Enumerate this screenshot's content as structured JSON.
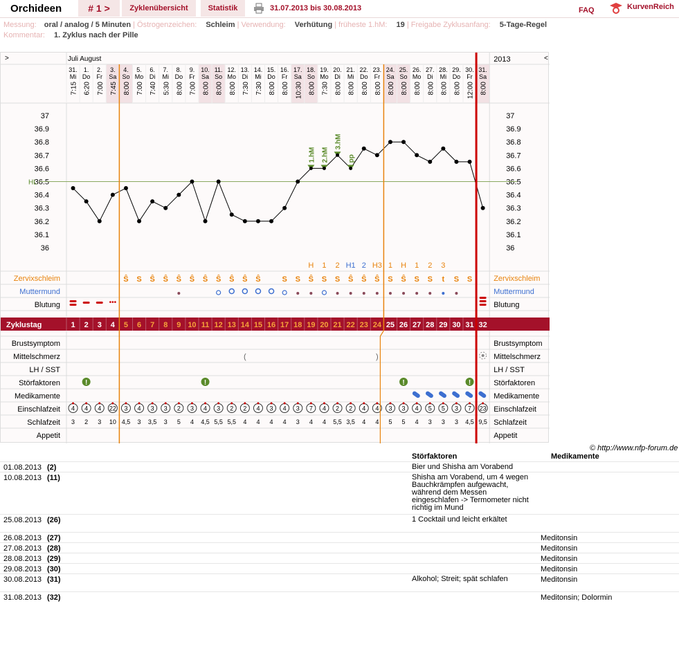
{
  "header": {
    "title": "Orchideen",
    "cycle_nav": "# 1 >",
    "tabs": [
      "Zyklenübersicht",
      "Statistik"
    ],
    "date_range": "31.07.2013 bis 30.08.2013",
    "faq": "FAQ",
    "brand": "KurvenReich"
  },
  "info": {
    "line1": [
      {
        "label": "Messung:",
        "value": "oral / analog / 5 Minuten"
      },
      {
        "label": "Östrogenzeichen:",
        "value": "Schleim"
      },
      {
        "label": "Verwendung:",
        "value": "Verhütung"
      },
      {
        "label": "früheste 1.hM:",
        "value": "19"
      },
      {
        "label": "Freigabe Zyklusanfang:",
        "value": "5-Tage-Regel"
      }
    ],
    "comment_label": "Kommentar:",
    "comment": "1. Zyklus nach der Pille"
  },
  "chart": {
    "nav_left": ">",
    "nav_right": "<",
    "months": "Juli August",
    "year": "2013",
    "days": [
      {
        "d": "31.",
        "w": "Mi",
        "t": "7:15"
      },
      {
        "d": "1.",
        "w": "Do",
        "t": "6:20"
      },
      {
        "d": "2.",
        "w": "Fr",
        "t": "7:00"
      },
      {
        "d": "3.",
        "w": "Sa",
        "t": "7:45"
      },
      {
        "d": "4.",
        "w": "So",
        "t": "8:00"
      },
      {
        "d": "5.",
        "w": "Mo",
        "t": "7:00"
      },
      {
        "d": "6.",
        "w": "Di",
        "t": "7:40"
      },
      {
        "d": "7.",
        "w": "Mi",
        "t": "5:30"
      },
      {
        "d": "8.",
        "w": "Do",
        "t": "8:00"
      },
      {
        "d": "9.",
        "w": "Fr",
        "t": "7:00"
      },
      {
        "d": "10.",
        "w": "Sa",
        "t": "8:00"
      },
      {
        "d": "11.",
        "w": "So",
        "t": "8:00"
      },
      {
        "d": "12.",
        "w": "Mo",
        "t": "8:00"
      },
      {
        "d": "13.",
        "w": "Di",
        "t": "7:30"
      },
      {
        "d": "14.",
        "w": "Mi",
        "t": "7:30"
      },
      {
        "d": "15.",
        "w": "Do",
        "t": "8:00"
      },
      {
        "d": "16.",
        "w": "Fr",
        "t": "8:00"
      },
      {
        "d": "17.",
        "w": "Sa",
        "t": "10:30"
      },
      {
        "d": "18.",
        "w": "So",
        "t": "8:00"
      },
      {
        "d": "19.",
        "w": "Mo",
        "t": "7:30"
      },
      {
        "d": "20.",
        "w": "Di",
        "t": "8:00"
      },
      {
        "d": "21.",
        "w": "Mi",
        "t": "8:00"
      },
      {
        "d": "22.",
        "w": "Do",
        "t": "8:00"
      },
      {
        "d": "23.",
        "w": "Fr",
        "t": "8:00"
      },
      {
        "d": "24.",
        "w": "Sa",
        "t": "8:00"
      },
      {
        "d": "25.",
        "w": "So",
        "t": "8:00"
      },
      {
        "d": "26.",
        "w": "Mo",
        "t": "8:00"
      },
      {
        "d": "27.",
        "w": "Di",
        "t": "8:00"
      },
      {
        "d": "28.",
        "w": "Mi",
        "t": "8:00"
      },
      {
        "d": "29.",
        "w": "Do",
        "t": "8:00"
      },
      {
        "d": "30.",
        "w": "Fr",
        "t": "12:00"
      },
      {
        "d": "31.",
        "w": "Sa",
        "t": "8:00"
      }
    ],
    "weekend": [
      3,
      4,
      10,
      11,
      17,
      18,
      24,
      25,
      31
    ],
    "ticks": [
      "37",
      "36.9",
      "36.8",
      "36.7",
      "36.6",
      "36.5",
      "36.4",
      "36.3",
      "36.2",
      "36.1",
      "36"
    ],
    "hl_label": "HL",
    "temps": [
      36.45,
      36.35,
      36.2,
      36.4,
      36.45,
      36.2,
      36.35,
      36.3,
      36.4,
      36.5,
      36.2,
      36.5,
      36.25,
      36.2,
      36.2,
      36.2,
      36.3,
      36.5,
      36.6,
      36.6,
      36.7,
      36.6,
      36.75,
      36.7,
      36.8,
      36.8,
      36.7,
      36.65,
      36.75,
      36.65,
      36.65,
      36.3
    ],
    "hm_labels": [
      "1.hM",
      "2.hM",
      "3.hM",
      "pp"
    ],
    "cervix_counts": [
      "H",
      "1",
      "2",
      "H1",
      "2",
      "H3",
      "1",
      "H",
      "1",
      "2",
      "3"
    ],
    "cervix": [
      "",
      "",
      "",
      "",
      "Ŝ",
      "S",
      "Ŝ",
      "Ŝ",
      "Ŝ",
      "Ŝ",
      "Ŝ",
      "Ŝ",
      "Ŝ",
      "Ŝ",
      "Ŝ",
      "",
      "S",
      "S",
      "Ŝ",
      "S",
      "S",
      "Ŝ",
      "Ŝ",
      "Ŝ",
      "S",
      "Ŝ",
      "S",
      "S",
      "t",
      "S",
      "S",
      ""
    ],
    "cycle_label": "Zyklustag",
    "cycle_days": [
      "1",
      "2",
      "3",
      "4",
      "5",
      "6",
      "7",
      "8",
      "9",
      "10",
      "11",
      "12",
      "13",
      "14",
      "15",
      "16",
      "17",
      "18",
      "19",
      "20",
      "21",
      "22",
      "23",
      "24",
      "25",
      "26",
      "27",
      "28",
      "29",
      "30",
      "31",
      "32"
    ],
    "rows_left": [
      "Zervixschleim",
      "Muttermund",
      "Blutung",
      "Brustsymptom",
      "Mittelschmerz",
      "LH / SST",
      "Störfaktoren",
      "Medikamente",
      "Einschlafzeit",
      "Schlafzeit",
      "Appetit"
    ],
    "rows_right": [
      "Zervixschleim",
      "Muttermund",
      "Blutung",
      "Brustsymptom",
      "Mittelschmerz",
      "LH / SST",
      "Störfaktoren",
      "Medikamente",
      "Einschlafzeit",
      "Schlafzeit",
      "Appetit"
    ],
    "einschlaf": [
      "4",
      "4",
      "4",
      "22",
      "3",
      "4",
      "3",
      "3",
      "2",
      "3",
      "4",
      "3",
      "2",
      "2",
      "4",
      "3",
      "4",
      "3",
      "7",
      "4",
      "2",
      "2",
      "4",
      "4",
      "3",
      "3",
      "4",
      "5",
      "5",
      "3",
      "7",
      "23"
    ],
    "schlafzeit": [
      "3",
      "2",
      "3",
      "10",
      "4,5",
      "3",
      "3,5",
      "3",
      "5",
      "4",
      "4,5",
      "5,5",
      "5,5",
      "4",
      "4",
      "4",
      "4",
      "3",
      "4",
      "4",
      "5,5",
      "3,5",
      "4",
      "4",
      "5",
      "5",
      "4",
      "3",
      "3",
      "3",
      "4,5",
      "9,5"
    ],
    "credit": "© http://www.nfp-forum.de"
  },
  "notes": {
    "col_stoer": "Störfaktoren",
    "col_med": "Medikamente",
    "rows": [
      {
        "date": "01.08.2013",
        "n": "(2)",
        "s": "Bier und Shisha am Vorabend",
        "m": ""
      },
      {
        "date": "10.08.2013",
        "n": "(11)",
        "s": "Shisha am Vorabend, um 4 wegen Bauchkrämpfen aufgewacht, während dem Messen eingeschlafen -> Termometer nicht richtig im Mund",
        "m": ""
      },
      {
        "date": "25.08.2013",
        "n": "(26)",
        "s": "1 Cocktail und leicht erkältet",
        "m": ""
      },
      {
        "date": "26.08.2013",
        "n": "(27)",
        "s": "",
        "m": "Meditonsin"
      },
      {
        "date": "27.08.2013",
        "n": "(28)",
        "s": "",
        "m": "Meditonsin"
      },
      {
        "date": "28.08.2013",
        "n": "(29)",
        "s": "",
        "m": "Meditonsin"
      },
      {
        "date": "29.08.2013",
        "n": "(30)",
        "s": "",
        "m": "Meditonsin"
      },
      {
        "date": "30.08.2013",
        "n": "(31)",
        "s": "Alkohol; Streit; spät schlafen",
        "m": "Meditonsin"
      },
      {
        "date": "31.08.2013",
        "n": "(32)",
        "s": "",
        "m": "Meditonsin; Dolormin"
      }
    ]
  },
  "colors": {
    "accent": "#a4112a",
    "orange": "#e8830c",
    "green": "#5a8a2a",
    "blue": "#3d6fd0",
    "red": "#cc0000"
  }
}
